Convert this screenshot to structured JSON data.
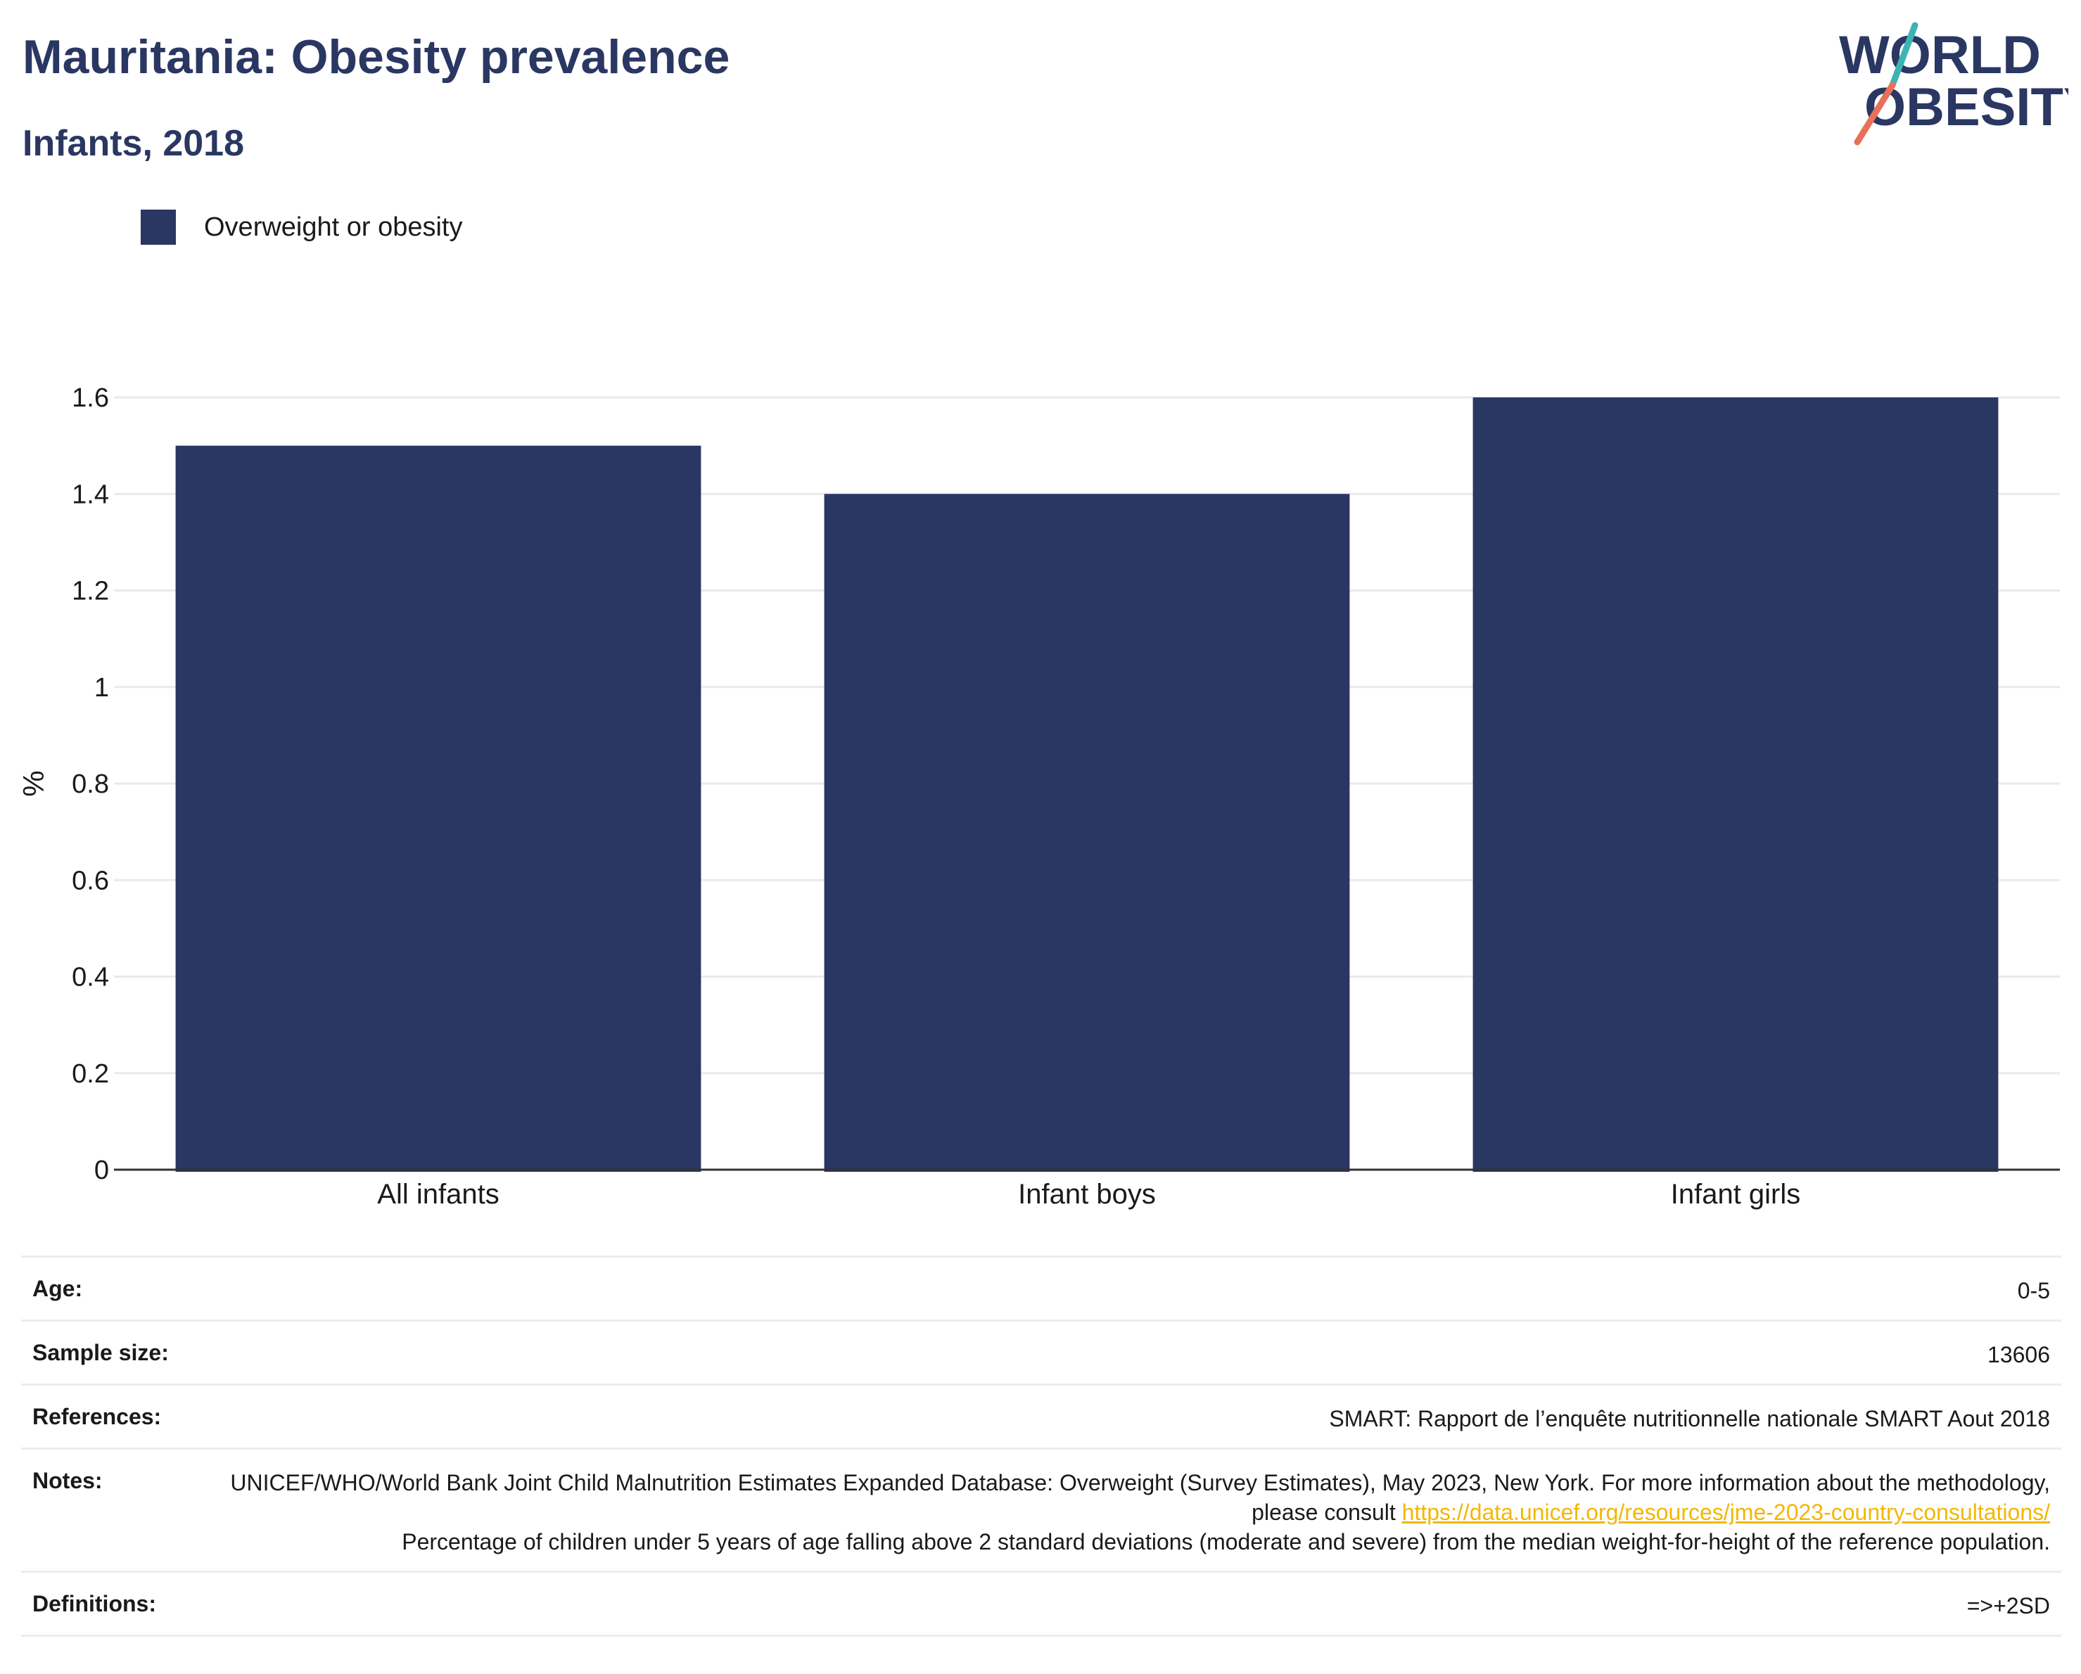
{
  "header": {
    "title": "Mauritania: Obesity prevalence",
    "subtitle": "Infants, 2018"
  },
  "logo": {
    "line1": "WORLD",
    "line2": "OBESITY",
    "colors": {
      "text": "#2a3762",
      "slash_teal": "#3cb4b4",
      "slash_coral": "#e8705a"
    }
  },
  "chart_data": {
    "type": "bar",
    "categories": [
      "All infants",
      "Infant boys",
      "Infant girls"
    ],
    "series": [
      {
        "name": "Overweight or obesity",
        "values": [
          1.5,
          1.4,
          1.6
        ],
        "color": "#2a3762"
      }
    ],
    "ylabel": "%",
    "ylim": [
      0,
      1.6
    ],
    "yticks": [
      0,
      0.2,
      0.4,
      0.6,
      0.8,
      1,
      1.2,
      1.4,
      1.6
    ],
    "grid": true,
    "legend": "top-left"
  },
  "details": {
    "age": {
      "label": "Age:",
      "value": "0-5"
    },
    "sample_size": {
      "label": "Sample size:",
      "value": "13606"
    },
    "references": {
      "label": "References:",
      "value": "SMART: Rapport de l’enquête nutritionnelle nationale SMART Aout 2018"
    },
    "notes": {
      "label": "Notes:",
      "text_before": "UNICEF/WHO/World Bank Joint Child Malnutrition Estimates Expanded Database: Overweight (Survey Estimates), May 2023, New York. For more information about the methodology, please consult ",
      "link": "https://data.unicef.org/resources/jme-2023-country-consultations/",
      "text_after": "Percentage of children under 5 years of age falling above 2 standard deviations (moderate and severe) from the median weight-for-height of the reference population."
    },
    "definitions": {
      "label": "Definitions:",
      "value": "=>+2SD"
    }
  }
}
